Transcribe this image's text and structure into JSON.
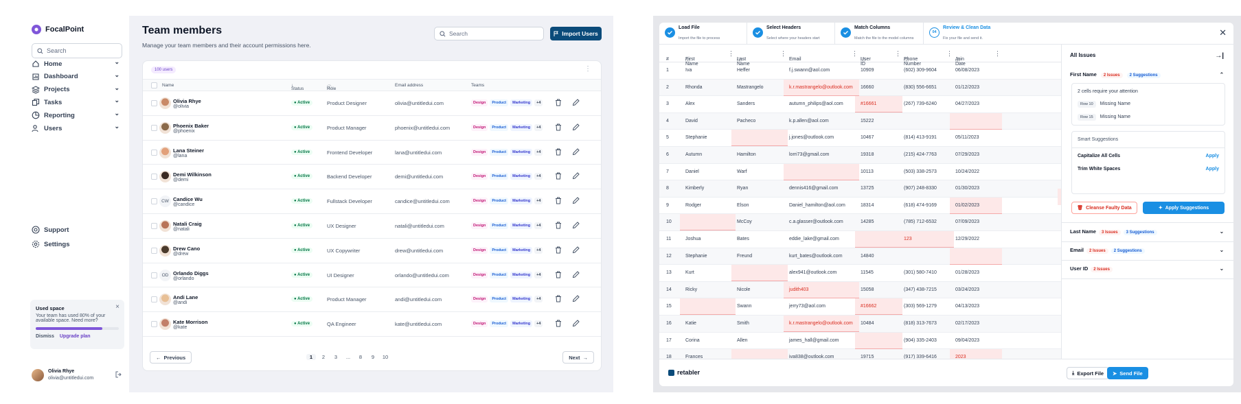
{
  "left_app": {
    "brand": "FocalPoint",
    "sidebar_search_placeholder": "Search",
    "nav": [
      {
        "label": "Home",
        "icon": "home-icon"
      },
      {
        "label": "Dashboard",
        "icon": "chart-icon"
      },
      {
        "label": "Projects",
        "icon": "layers-icon"
      },
      {
        "label": "Tasks",
        "icon": "copy-icon"
      },
      {
        "label": "Reporting",
        "icon": "pie-icon"
      },
      {
        "label": "Users",
        "icon": "users-icon"
      }
    ],
    "bottom_nav": [
      {
        "label": "Support"
      },
      {
        "label": "Settings"
      }
    ],
    "used_space": {
      "title": "Used space",
      "text": "Your team has used 80% of your available space. Need more?",
      "percent": 80,
      "dismiss": "Dismiss",
      "upgrade": "Upgrade plan"
    },
    "footer_user": {
      "name": "Olivia Rhye",
      "email": "olivia@untitledui.com"
    },
    "title": "Team members",
    "subtitle": "Manage your team members and their account permissions here.",
    "search_placeholder": "Search",
    "import_label": "Import Users",
    "count_badge": "100 users",
    "columns": [
      "Name",
      "Status",
      "Role",
      "Email address",
      "Teams"
    ],
    "tags": [
      "Design",
      "Product",
      "Marketing",
      "+4"
    ],
    "rows": [
      {
        "name": "Olivia Rhye",
        "handle": "@olivia",
        "status": "Active",
        "role": "Product Designer",
        "email": "olivia@untitledui.com",
        "initials": ""
      },
      {
        "name": "Phoenix Baker",
        "handle": "@phoenix",
        "status": "Active",
        "role": "Product Manager",
        "email": "phoenix@untitledui.com",
        "initials": ""
      },
      {
        "name": "Lana Steiner",
        "handle": "@lana",
        "status": "Active",
        "role": "Frontend Developer",
        "email": "lana@untitledui.com",
        "initials": ""
      },
      {
        "name": "Demi Wilkinson",
        "handle": "@demi",
        "status": "Active",
        "role": "Backend Developer",
        "email": "demi@untitledui.com",
        "initials": ""
      },
      {
        "name": "Candice Wu",
        "handle": "@candice",
        "status": "Active",
        "role": "Fullstack Developer",
        "email": "candice@untitledui.com",
        "initials": "CW"
      },
      {
        "name": "Natali Craig",
        "handle": "@natali",
        "status": "Active",
        "role": "UX Designer",
        "email": "natali@untitledui.com",
        "initials": ""
      },
      {
        "name": "Drew Cano",
        "handle": "@drew",
        "status": "Active",
        "role": "UX Copywriter",
        "email": "drew@untitledui.com",
        "initials": ""
      },
      {
        "name": "Orlando Diggs",
        "handle": "@orlando",
        "status": "Active",
        "role": "UI Designer",
        "email": "orlando@untitledui.com",
        "initials": "OD"
      },
      {
        "name": "Andi Lane",
        "handle": "@andi",
        "status": "Active",
        "role": "Product Manager",
        "email": "andi@untitledui.com",
        "initials": ""
      },
      {
        "name": "Kate Morrison",
        "handle": "@kate",
        "status": "Active",
        "role": "QA Engineer",
        "email": "kate@untitledui.com",
        "initials": ""
      }
    ],
    "pager": {
      "prev": "Previous",
      "next": "Next",
      "pages": [
        "1",
        "2",
        "3",
        "...",
        "8",
        "9",
        "10"
      ]
    }
  },
  "right_app": {
    "steps": [
      {
        "title": "Load File",
        "desc": "Import the file to process",
        "mark": ""
      },
      {
        "title": "Select Headers",
        "desc": "Select where your headers start",
        "mark": ""
      },
      {
        "title": "Match Columns",
        "desc": "Match the file to the model columns",
        "mark": ""
      },
      {
        "title": "Review & Clean Data",
        "desc": "Fix your file and send it.",
        "mark": "04"
      }
    ],
    "columns": [
      "#",
      "First Name",
      "Last Name",
      "Email",
      "User ID",
      "Phone Number",
      "Join Date"
    ],
    "rows": [
      [
        "1",
        "Iva",
        "Heffer",
        "f.j.swann@aol.com",
        "10909",
        "(602) 309-9604",
        "06/08/2023"
      ],
      [
        "2",
        "Rhonda",
        "Mastrangelo",
        "k.r.mastrangelo@outlook.com",
        "16660",
        "(830) 556-6651",
        "01/12/2023"
      ],
      [
        "3",
        "Alex",
        "Sanders",
        "autumn_philips@aol.com",
        "#16661",
        "(267) 739-6240",
        "04/27/2023"
      ],
      [
        "4",
        "David",
        "Pacheco",
        "k.p.allen@aol.com",
        "15222",
        "",
        ""
      ],
      [
        "5",
        "Stephanie",
        "",
        "j.jones@outlook.com",
        "10467",
        "(814) 413-9191",
        "05/11/2023"
      ],
      [
        "6",
        "Autumn",
        "Hamilton",
        "lorri73@gmail.com",
        "19318",
        "(215) 424-7763",
        "07/29/2023"
      ],
      [
        "7",
        "Daniel",
        "Warf",
        "",
        "10113",
        "(503) 338-2573",
        "10/24/2022"
      ],
      [
        "8",
        "Kimberly",
        "Ryan",
        "dennis416@gmail.com",
        "13725",
        "(907) 248-8330",
        "01/30/2023"
      ],
      [
        "9",
        "Rodger",
        "Elson",
        "Daniel_hamilton@aol.com",
        "18314",
        "(618) 474-9169",
        "01/02/2023"
      ],
      [
        "10",
        "",
        "McCoy",
        "c.a.glasser@outlook.com",
        "14285",
        "(785) 712-6532",
        "07/09/2023"
      ],
      [
        "11",
        "Joshua",
        "Bates",
        "eddie_lake@gmail.com",
        "",
        "123",
        "12/29/2022"
      ],
      [
        "12",
        "Stephanie",
        "Freund",
        "kurt_bates@outlook.com",
        "14840",
        "",
        ""
      ],
      [
        "13",
        "Kurt",
        "",
        "alex941@outlook.com",
        "11545",
        "(301) 580-7410",
        "01/28/2023"
      ],
      [
        "14",
        "Ricky",
        "Nicole",
        "judith403",
        "15058",
        "(347) 438-7215",
        "03/24/2023"
      ],
      [
        "15",
        "",
        "Swann",
        "jerry73@aol.com",
        "#16662",
        "(303) 569-1279",
        "04/13/2023"
      ],
      [
        "16",
        "Katie",
        "Smith",
        "k.r.mastrangelo@outlook.com",
        "10484",
        "(818) 313-7673",
        "02/17/2023"
      ],
      [
        "17",
        "Corina",
        "Allen",
        "james_hall@gmail.com",
        "",
        "(904) 335-2403",
        "09/04/2023"
      ],
      [
        "18",
        "Frances",
        "",
        "iva838@outlook.com",
        "19715",
        "(917) 339-6416",
        "2023"
      ]
    ],
    "issues": {
      "title": "All Issues",
      "first_name": {
        "label": "First Name",
        "issues": "2 Issues",
        "suggestions": "2 Suggestions",
        "note": "2 cells require your attention",
        "items": [
          {
            "row": "Row 10",
            "text": "Missing Name"
          },
          {
            "row": "Row 15",
            "text": "Missing Name"
          }
        ]
      },
      "smart": {
        "title": "Smart Suggestions",
        "items": [
          {
            "text": "Capitalize All Cells",
            "action": "Apply"
          },
          {
            "text": "Trim White Spaces",
            "action": "Apply"
          }
        ]
      },
      "cleanse": "Cleanse Faulty Data",
      "apply_all": "Apply Suggestions",
      "others": [
        {
          "label": "Last Name",
          "issues": "3 Issues",
          "suggestions": "3 Suggestions"
        },
        {
          "label": "Email",
          "issues": "2 Issues",
          "suggestions": "2 Suggestions"
        },
        {
          "label": "User ID",
          "issues": "2 Issues",
          "suggestions": ""
        }
      ]
    },
    "brand": "retabler",
    "export_label": "Export File",
    "send_label": "Send File"
  }
}
